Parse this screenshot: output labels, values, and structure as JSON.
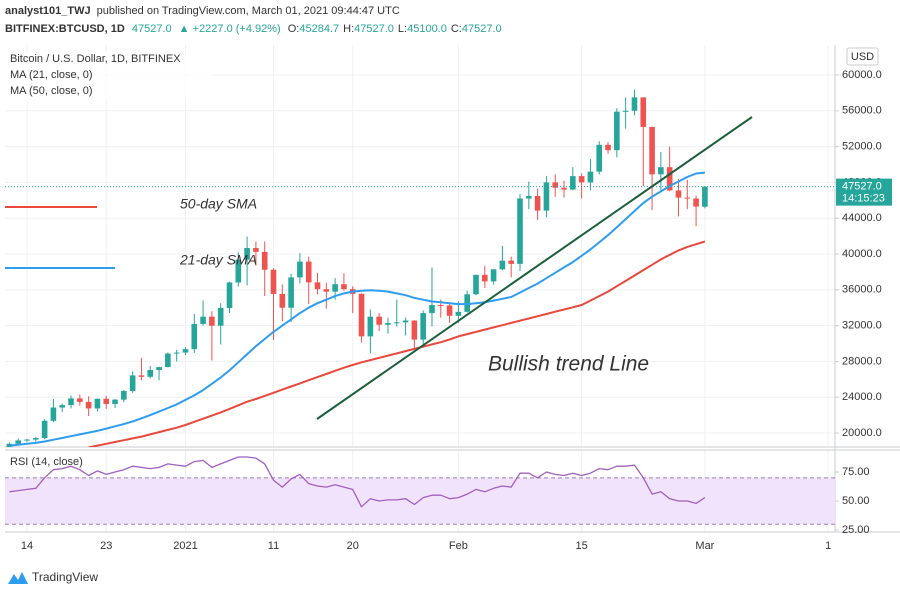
{
  "header": {
    "author": "analyst101_TWJ",
    "published": "published on TradingView.com, March 01, 2021 09:44:47 UTC",
    "symbol": "BITFINEX:BTCUSD, 1D",
    "price": "47527.0",
    "change": "▲ +2227.0 (+4.92%)",
    "ohlc": [
      {
        "k": "O:",
        "v": "45284.7"
      },
      {
        "k": "H:",
        "v": "47527.0"
      },
      {
        "k": "L:",
        "v": "45100.0"
      },
      {
        "k": "C:",
        "v": "47527.0"
      }
    ]
  },
  "footer": {
    "logo": "TradingView"
  },
  "chart_data": [
    {
      "type": "candlestick",
      "title": "Bitcoin / U.S. Dollar, 1D, BITFINEX",
      "currency": "USD",
      "up_color": "#26a69a",
      "down_color": "#ef5350",
      "open": [
        18040,
        18800,
        19170,
        19270,
        19440,
        21370,
        22850,
        23120,
        23870,
        23480,
        22750,
        23830,
        23250,
        23730,
        24700,
        26440,
        26280,
        27040,
        27370,
        28880,
        28990,
        29370,
        32190,
        33000,
        31990,
        33970,
        36820,
        39370,
        40670,
        40240,
        38240,
        35540,
        34000,
        37390,
        39150,
        36830,
        36070,
        35790,
        36630,
        36070,
        35550,
        30800,
        33000,
        32100,
        32300,
        32370,
        32570,
        30440,
        33400,
        34300,
        34250,
        33100,
        33540,
        35500,
        37670,
        36940,
        38290,
        39260,
        38900,
        46200,
        46480,
        44850,
        48000,
        47400,
        47200,
        48700,
        48000,
        49200,
        52200,
        51600,
        55900,
        56000,
        57500,
        54200,
        48900,
        49700,
        47100,
        46300,
        46200,
        45284.7
      ],
      "high": [
        18950,
        19400,
        19350,
        19570,
        21560,
        23800,
        23300,
        24170,
        24300,
        24100,
        23850,
        24150,
        23800,
        24800,
        26900,
        28400,
        27500,
        27400,
        29000,
        29300,
        29600,
        33300,
        34800,
        33600,
        34500,
        36900,
        40200,
        41950,
        41400,
        41400,
        38400,
        36600,
        37800,
        40100,
        39700,
        37900,
        36800,
        37300,
        37850,
        36400,
        35600,
        33800,
        33400,
        32900,
        34900,
        32900,
        32600,
        33700,
        38500,
        34900,
        34400,
        34700,
        35900,
        37700,
        38700,
        38300,
        40900,
        39700,
        46700,
        48100,
        47300,
        48700,
        48900,
        48200,
        49700,
        49000,
        50600,
        52600,
        52500,
        56300,
        57500,
        58350,
        57500,
        54200,
        51400,
        52000,
        48400,
        48300,
        46500,
        47527.0
      ],
      "low": [
        18020,
        18700,
        19000,
        19050,
        19300,
        21230,
        22350,
        22750,
        23060,
        21900,
        22400,
        22700,
        22800,
        23450,
        24500,
        25900,
        26100,
        25900,
        27320,
        28000,
        28700,
        28950,
        32000,
        28100,
        29900,
        33400,
        36350,
        36500,
        38700,
        35300,
        30400,
        32500,
        32400,
        36700,
        34400,
        35500,
        33900,
        34900,
        35900,
        33400,
        30100,
        28900,
        31400,
        31100,
        31900,
        30900,
        29300,
        29900,
        31900,
        32900,
        32300,
        32300,
        33450,
        35400,
        36200,
        36600,
        38200,
        37400,
        38100,
        45000,
        43800,
        44100,
        46400,
        46300,
        47100,
        46200,
        47100,
        48900,
        51200,
        50800,
        54000,
        55500,
        47600,
        44900,
        47100,
        47000,
        44200,
        45000,
        43100,
        45100.0
      ],
      "close": [
        18800,
        19170,
        19270,
        19440,
        21370,
        22850,
        23120,
        23870,
        23480,
        22750,
        23830,
        23250,
        23730,
        24700,
        26440,
        26280,
        27040,
        27370,
        28880,
        28990,
        29370,
        32190,
        33000,
        31990,
        33970,
        36820,
        39370,
        40670,
        40240,
        38240,
        35540,
        34000,
        37390,
        39150,
        36830,
        36070,
        35790,
        36630,
        36070,
        35550,
        30800,
        33000,
        32100,
        32300,
        32370,
        32570,
        30440,
        33400,
        34300,
        34250,
        33100,
        33540,
        35500,
        37670,
        36940,
        38290,
        39260,
        38900,
        46200,
        46480,
        44850,
        48000,
        47400,
        47200,
        48700,
        48000,
        49200,
        52200,
        51600,
        55900,
        56000,
        57500,
        54200,
        48900,
        49700,
        47100,
        46300,
        46200,
        45300,
        47527.0
      ],
      "series": [
        {
          "name": "MA (21, close, 0)",
          "color": "#2e9cef",
          "values": [
            18600,
            18700,
            18800,
            18900,
            19050,
            19250,
            19450,
            19650,
            19850,
            20050,
            20250,
            20500,
            20750,
            21000,
            21300,
            21650,
            22000,
            22400,
            22800,
            23200,
            23700,
            24200,
            24800,
            25500,
            26200,
            27000,
            27900,
            28800,
            29700,
            30500,
            31300,
            32000,
            32700,
            33400,
            34000,
            34500,
            34900,
            35300,
            35600,
            35800,
            35900,
            35950,
            35900,
            35800,
            35600,
            35400,
            35100,
            34900,
            34700,
            34600,
            34500,
            34400,
            34400,
            34500,
            34600,
            34800,
            35000,
            35200,
            35700,
            36200,
            36700,
            37300,
            37900,
            38500,
            39100,
            39800,
            40500,
            41300,
            42100,
            43000,
            43900,
            44800,
            45700,
            46400,
            47000,
            47600,
            48100,
            48600,
            49000,
            49100
          ]
        },
        {
          "name": "MA (50, close, 0)",
          "color": "#e8483e",
          "values": [
            null,
            null,
            null,
            null,
            null,
            null,
            null,
            null,
            null,
            18400,
            18600,
            18800,
            19000,
            19200,
            19400,
            19600,
            19850,
            20100,
            20350,
            20600,
            20900,
            21250,
            21600,
            21950,
            22300,
            22700,
            23100,
            23500,
            23800,
            24150,
            24500,
            24850,
            25200,
            25550,
            25900,
            26250,
            26600,
            26950,
            27300,
            27600,
            27900,
            28150,
            28400,
            28650,
            28900,
            29150,
            29400,
            29650,
            29900,
            30150,
            30450,
            30800,
            31050,
            31300,
            31550,
            31800,
            32050,
            32300,
            32550,
            32800,
            33050,
            33300,
            33550,
            33800,
            34050,
            34300,
            34800,
            35300,
            35800,
            36400,
            37000,
            37600,
            38200,
            38800,
            39400,
            39900,
            40400,
            40800,
            41100,
            41400
          ]
        }
      ],
      "last_price": {
        "value": 47527,
        "label": "47527.0"
      },
      "countdown": "14:15:23",
      "annotations": [
        {
          "text": "50-day SMA",
          "color": "#e8483e"
        },
        {
          "text": "21-day SMA",
          "color": "#2e9cef"
        },
        {
          "text": "Bullish trend Line",
          "color": "#222222"
        }
      ],
      "ylim": [
        18440,
        63350
      ],
      "yticks": [
        {
          "value": 20000,
          "label": "20000.0"
        },
        {
          "value": 24000,
          "label": "24000.0"
        },
        {
          "value": 28000,
          "label": "28000.0"
        },
        {
          "value": 32000,
          "label": "32000.0"
        },
        {
          "value": 36000,
          "label": "36000.0"
        },
        {
          "value": 40000,
          "label": "40000.0"
        },
        {
          "value": 44000,
          "label": "44000.0"
        },
        {
          "value": 48000,
          "label": "48000.0"
        },
        {
          "value": 52000,
          "label": "52000.0"
        },
        {
          "value": 56000,
          "label": "56000.0"
        },
        {
          "value": 60000,
          "label": "60000.0"
        }
      ],
      "xlim": [
        -0.5,
        93.78
      ],
      "xticks": [
        {
          "value": 2,
          "label": "14"
        },
        {
          "value": 11,
          "label": "23"
        },
        {
          "value": 20,
          "label": "2021"
        },
        {
          "value": 30,
          "label": "11"
        },
        {
          "value": 39,
          "label": "20"
        },
        {
          "value": 51,
          "label": "Feb"
        },
        {
          "value": 65,
          "label": "15"
        },
        {
          "value": 79,
          "label": "Mar"
        },
        {
          "value": 93,
          "label": "1"
        }
      ],
      "grid": true
    },
    {
      "type": "line",
      "title": "RSI (14, close)",
      "color": "#a15fbf",
      "values": [
        58,
        59,
        60,
        61,
        70,
        77,
        78,
        80,
        77,
        72,
        76,
        73,
        75,
        77,
        80,
        79,
        78,
        79,
        82,
        81,
        80,
        84,
        85,
        79,
        82,
        85,
        88,
        88,
        87,
        82,
        68,
        62,
        69,
        73,
        65,
        63,
        62,
        64,
        62,
        60,
        45,
        52,
        50,
        51,
        51,
        52,
        47,
        53,
        55,
        55,
        52,
        53,
        56,
        60,
        58,
        61,
        63,
        62,
        74,
        74,
        70,
        75,
        73,
        72,
        74,
        72,
        74,
        78,
        77,
        80,
        80,
        81,
        70,
        56,
        58,
        52,
        50,
        50,
        48,
        53
      ],
      "band": [
        30,
        70
      ],
      "band_color": "#f1e3fb",
      "ylim": [
        23.3,
        94
      ],
      "yticks": [
        {
          "value": 25,
          "label": "25.00"
        },
        {
          "value": 50,
          "label": "50.00"
        },
        {
          "value": 75,
          "label": "75.00"
        }
      ]
    }
  ]
}
